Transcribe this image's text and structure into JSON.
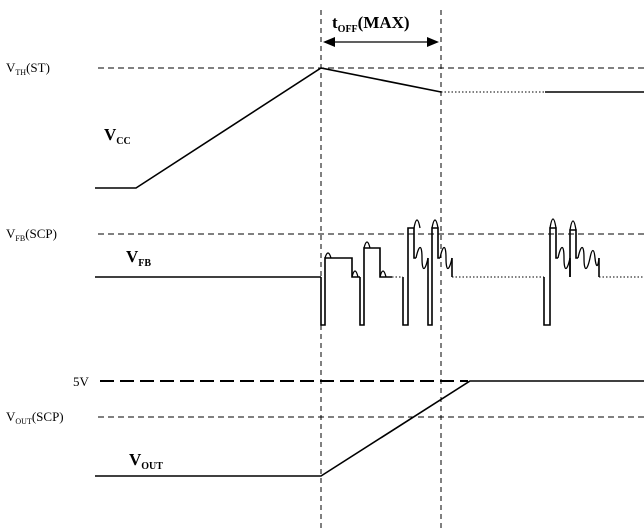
{
  "timing": {
    "toff_label": {
      "main": "t",
      "sub": "OFF",
      "suffix": "(MAX)"
    }
  },
  "thresholds": {
    "vth": {
      "main": "V",
      "sub": "TH",
      "suffix": "(ST)"
    },
    "vfb_scp": {
      "main": "V",
      "sub": "FB",
      "suffix": "(SCP)"
    },
    "five_v": "5V",
    "vout_scp": {
      "main": "V",
      "sub": "OUT",
      "suffix": "(SCP)"
    }
  },
  "signals": {
    "vcc": {
      "main": "V",
      "sub": "CC"
    },
    "vfb": {
      "main": "V",
      "sub": "FB"
    },
    "vout": {
      "main": "V",
      "sub": "OUT"
    }
  }
}
